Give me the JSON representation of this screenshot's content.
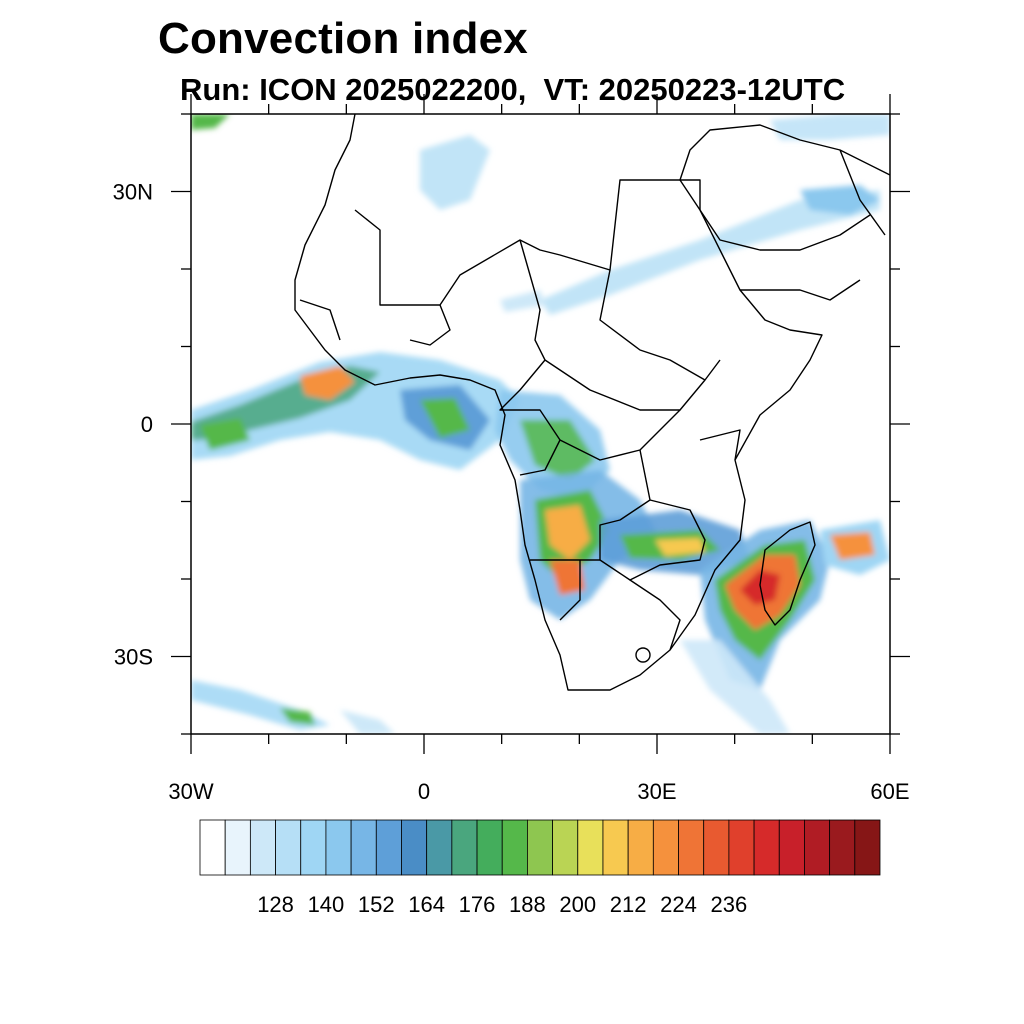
{
  "title": "Convection index",
  "subtitle": "Run: ICON 2025022200,  VT: 20250223-12UTC",
  "map": {
    "lon_range": [
      -30,
      60
    ],
    "lat_range": [
      -40,
      40
    ],
    "lat_ticks": [
      {
        "value": 30,
        "label": "30N"
      },
      {
        "value": 0,
        "label": "0"
      },
      {
        "value": -30,
        "label": "30S"
      }
    ],
    "lon_ticks": [
      {
        "value": -30,
        "label": "30W"
      },
      {
        "value": 0,
        "label": "0"
      },
      {
        "value": 30,
        "label": "30E"
      },
      {
        "value": 60,
        "label": "60E"
      }
    ]
  },
  "colorbar": {
    "colors": [
      "#ffffff",
      "#e8f4fc",
      "#cde8f8",
      "#b6dff6",
      "#9fd6f4",
      "#8bc8ee",
      "#77b6e6",
      "#5e9fd8",
      "#4a8dc6",
      "#4a99a6",
      "#4aa67e",
      "#44ad5c",
      "#55b84a",
      "#8ec650",
      "#bad454",
      "#e8e05a",
      "#f7c950",
      "#f7ad45",
      "#f5913d",
      "#ef7436",
      "#e85a30",
      "#e0402c",
      "#d62a2a",
      "#c8202a",
      "#b01c24",
      "#9a1a1e",
      "#861616"
    ],
    "labels": [
      "128",
      "140",
      "152",
      "164",
      "176",
      "188",
      "200",
      "212",
      "224",
      "236"
    ]
  }
}
